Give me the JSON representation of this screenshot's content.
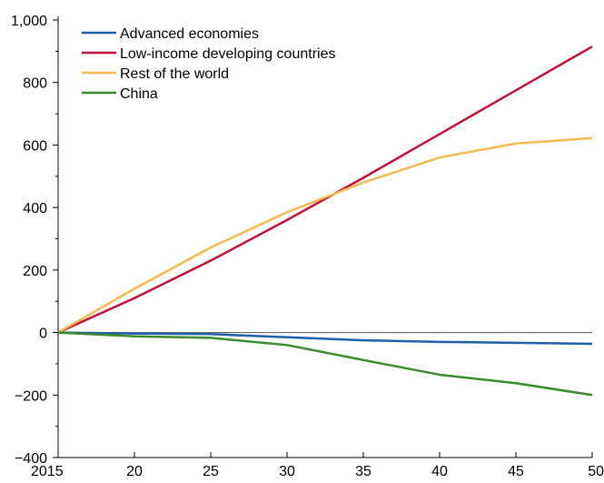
{
  "chart_data": {
    "type": "line",
    "x": [
      2015,
      2020,
      2025,
      2030,
      2035,
      2040,
      2045,
      2050
    ],
    "x_tick_labels": [
      "2015",
      "20",
      "25",
      "30",
      "35",
      "40",
      "45",
      "50"
    ],
    "ylim": [
      -400,
      1000
    ],
    "y_ticks": [
      -400,
      -200,
      0,
      200,
      400,
      600,
      800,
      1000
    ],
    "y_tick_labels": [
      "−400",
      "−200",
      "0",
      "200",
      "400",
      "600",
      "800",
      "1,000"
    ],
    "legend_position": "top-left",
    "zero_line": true,
    "series": [
      {
        "name": "Advanced economies",
        "color": "#1f5fa8",
        "values": [
          0,
          -3,
          -5,
          -15,
          -25,
          -30,
          -33,
          -36
        ]
      },
      {
        "name": "Low-income developing countries",
        "color": "#c3123a",
        "values": [
          0,
          110,
          230,
          360,
          495,
          635,
          775,
          915
        ]
      },
      {
        "name": "Rest of the world",
        "color": "#f6b94e",
        "values": [
          0,
          140,
          272,
          385,
          480,
          560,
          605,
          622
        ]
      },
      {
        "name": "China",
        "color": "#3a8a2e",
        "values": [
          0,
          -12,
          -17,
          -40,
          -88,
          -135,
          -162,
          -200
        ]
      }
    ]
  }
}
